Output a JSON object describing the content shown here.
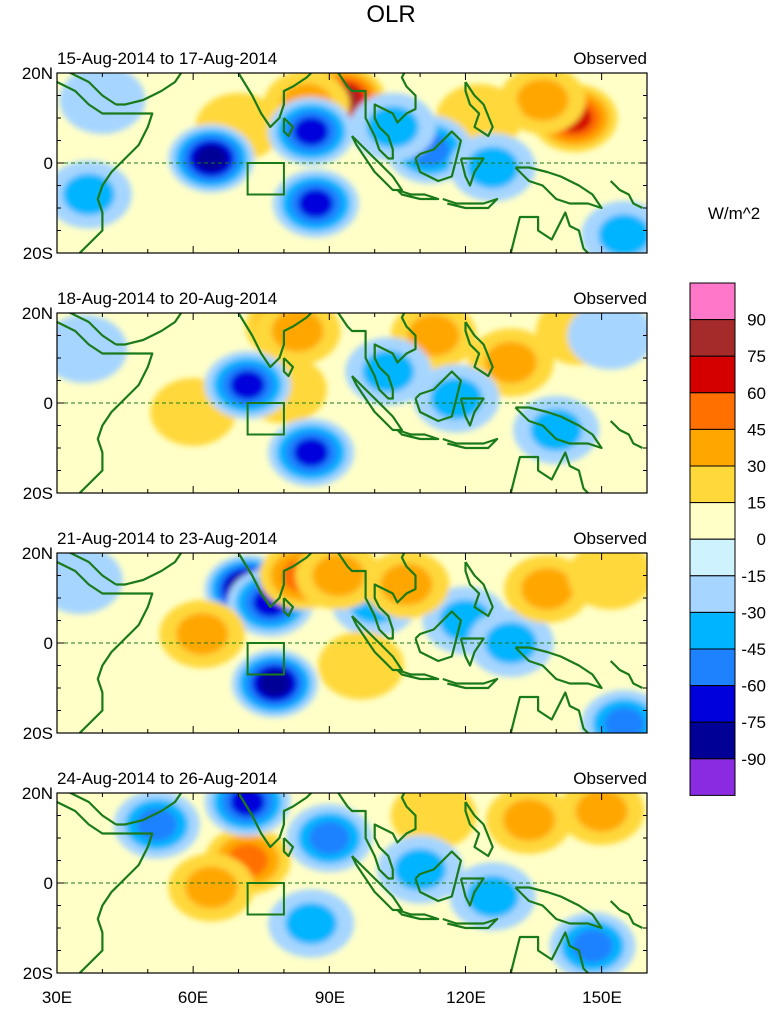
{
  "chart_data": {
    "type": "heatmap",
    "title": "OLR",
    "units": "W/m^2",
    "x_ticks": [
      "30E",
      "60E",
      "90E",
      "120E",
      "150E"
    ],
    "x_range": [
      30,
      160
    ],
    "y_ticks": [
      "20N",
      "0",
      "20S"
    ],
    "y_range": [
      -20,
      20
    ],
    "colorbar": {
      "labels": [
        "90",
        "75",
        "60",
        "45",
        "30",
        "15",
        "0",
        "-15",
        "-30",
        "-45",
        "-60",
        "-75",
        "-90"
      ],
      "colors": [
        "#ff77c8",
        "#a52a2a",
        "#d40000",
        "#ff7000",
        "#ffa700",
        "#ffd83a",
        "#ffffc8",
        "#cff2ff",
        "#a6d5ff",
        "#00b4ff",
        "#1e82ff",
        "#0000dc",
        "#000096",
        "#8a2be2"
      ]
    },
    "panels": [
      {
        "period": "15-Aug-2014 to 17-Aug-2014",
        "label": "Observed",
        "anomalies": [
          {
            "lon": 144,
            "lat": 10,
            "value": 70
          },
          {
            "lon": 137,
            "lat": 14,
            "value": 40
          },
          {
            "lon": 93,
            "lat": 14,
            "value": 75
          },
          {
            "lon": 85,
            "lat": 13,
            "value": 35
          },
          {
            "lon": 70,
            "lat": 8,
            "value": 20
          },
          {
            "lon": 123,
            "lat": 10,
            "value": 20
          },
          {
            "lon": 64,
            "lat": 1,
            "value": -75
          },
          {
            "lon": 86,
            "lat": 7,
            "value": -70
          },
          {
            "lon": 87,
            "lat": -9,
            "value": -60
          },
          {
            "lon": 112,
            "lat": 3,
            "value": -45
          },
          {
            "lon": 104,
            "lat": 8,
            "value": -35
          },
          {
            "lon": 126,
            "lat": -1,
            "value": -35
          },
          {
            "lon": 37,
            "lat": -7,
            "value": -30
          },
          {
            "lon": 40,
            "lat": 14,
            "value": -20
          },
          {
            "lon": 155,
            "lat": -16,
            "value": -30
          }
        ]
      },
      {
        "period": "18-Aug-2014 to 20-Aug-2014",
        "label": "Observed",
        "anomalies": [
          {
            "lon": 81,
            "lat": 17,
            "value": 70
          },
          {
            "lon": 83,
            "lat": 16,
            "value": 40
          },
          {
            "lon": 130,
            "lat": 9,
            "value": 35
          },
          {
            "lon": 113,
            "lat": 15,
            "value": 30
          },
          {
            "lon": 145,
            "lat": 16,
            "value": 25
          },
          {
            "lon": 60,
            "lat": -2,
            "value": 25
          },
          {
            "lon": 80,
            "lat": 3,
            "value": 25
          },
          {
            "lon": 72,
            "lat": 4,
            "value": -70
          },
          {
            "lon": 86,
            "lat": -11,
            "value": -70
          },
          {
            "lon": 103,
            "lat": 7,
            "value": -35
          },
          {
            "lon": 118,
            "lat": 1,
            "value": -30
          },
          {
            "lon": 140,
            "lat": -6,
            "value": -30
          },
          {
            "lon": 152,
            "lat": 15,
            "value": -20
          },
          {
            "lon": 36,
            "lat": 12,
            "value": -25
          }
        ]
      },
      {
        "period": "21-Aug-2014 to 23-Aug-2014",
        "label": "Observed",
        "anomalies": [
          {
            "lon": 72,
            "lat": 12,
            "value": -90
          },
          {
            "lon": 77,
            "lat": 9,
            "value": -60
          },
          {
            "lon": 78,
            "lat": -9,
            "value": -75
          },
          {
            "lon": 100,
            "lat": 9,
            "value": -30
          },
          {
            "lon": 120,
            "lat": 5,
            "value": -30
          },
          {
            "lon": 130,
            "lat": 0,
            "value": -30
          },
          {
            "lon": 155,
            "lat": -18,
            "value": -45
          },
          {
            "lon": 35,
            "lat": 14,
            "value": -20
          },
          {
            "lon": 84,
            "lat": 15,
            "value": 45
          },
          {
            "lon": 92,
            "lat": 15,
            "value": 30
          },
          {
            "lon": 107,
            "lat": 13,
            "value": 40
          },
          {
            "lon": 62,
            "lat": 2,
            "value": 30
          },
          {
            "lon": 97,
            "lat": -5,
            "value": 25
          },
          {
            "lon": 138,
            "lat": 12,
            "value": 30
          },
          {
            "lon": 152,
            "lat": 15,
            "value": 25
          }
        ]
      },
      {
        "period": "24-Aug-2014 to 26-Aug-2014",
        "label": "Observed",
        "anomalies": [
          {
            "lon": 72,
            "lat": 5,
            "value": 50
          },
          {
            "lon": 64,
            "lat": -1,
            "value": 30
          },
          {
            "lon": 134,
            "lat": 14,
            "value": 35
          },
          {
            "lon": 150,
            "lat": 16,
            "value": 35
          },
          {
            "lon": 113,
            "lat": 15,
            "value": 20
          },
          {
            "lon": 72,
            "lat": 18,
            "value": -70
          },
          {
            "lon": 52,
            "lat": 13,
            "value": -45
          },
          {
            "lon": 90,
            "lat": 10,
            "value": -45
          },
          {
            "lon": 110,
            "lat": 3,
            "value": -40
          },
          {
            "lon": 126,
            "lat": -3,
            "value": -40
          },
          {
            "lon": 148,
            "lat": -14,
            "value": -45
          },
          {
            "lon": 86,
            "lat": -9,
            "value": -30
          }
        ]
      }
    ]
  }
}
